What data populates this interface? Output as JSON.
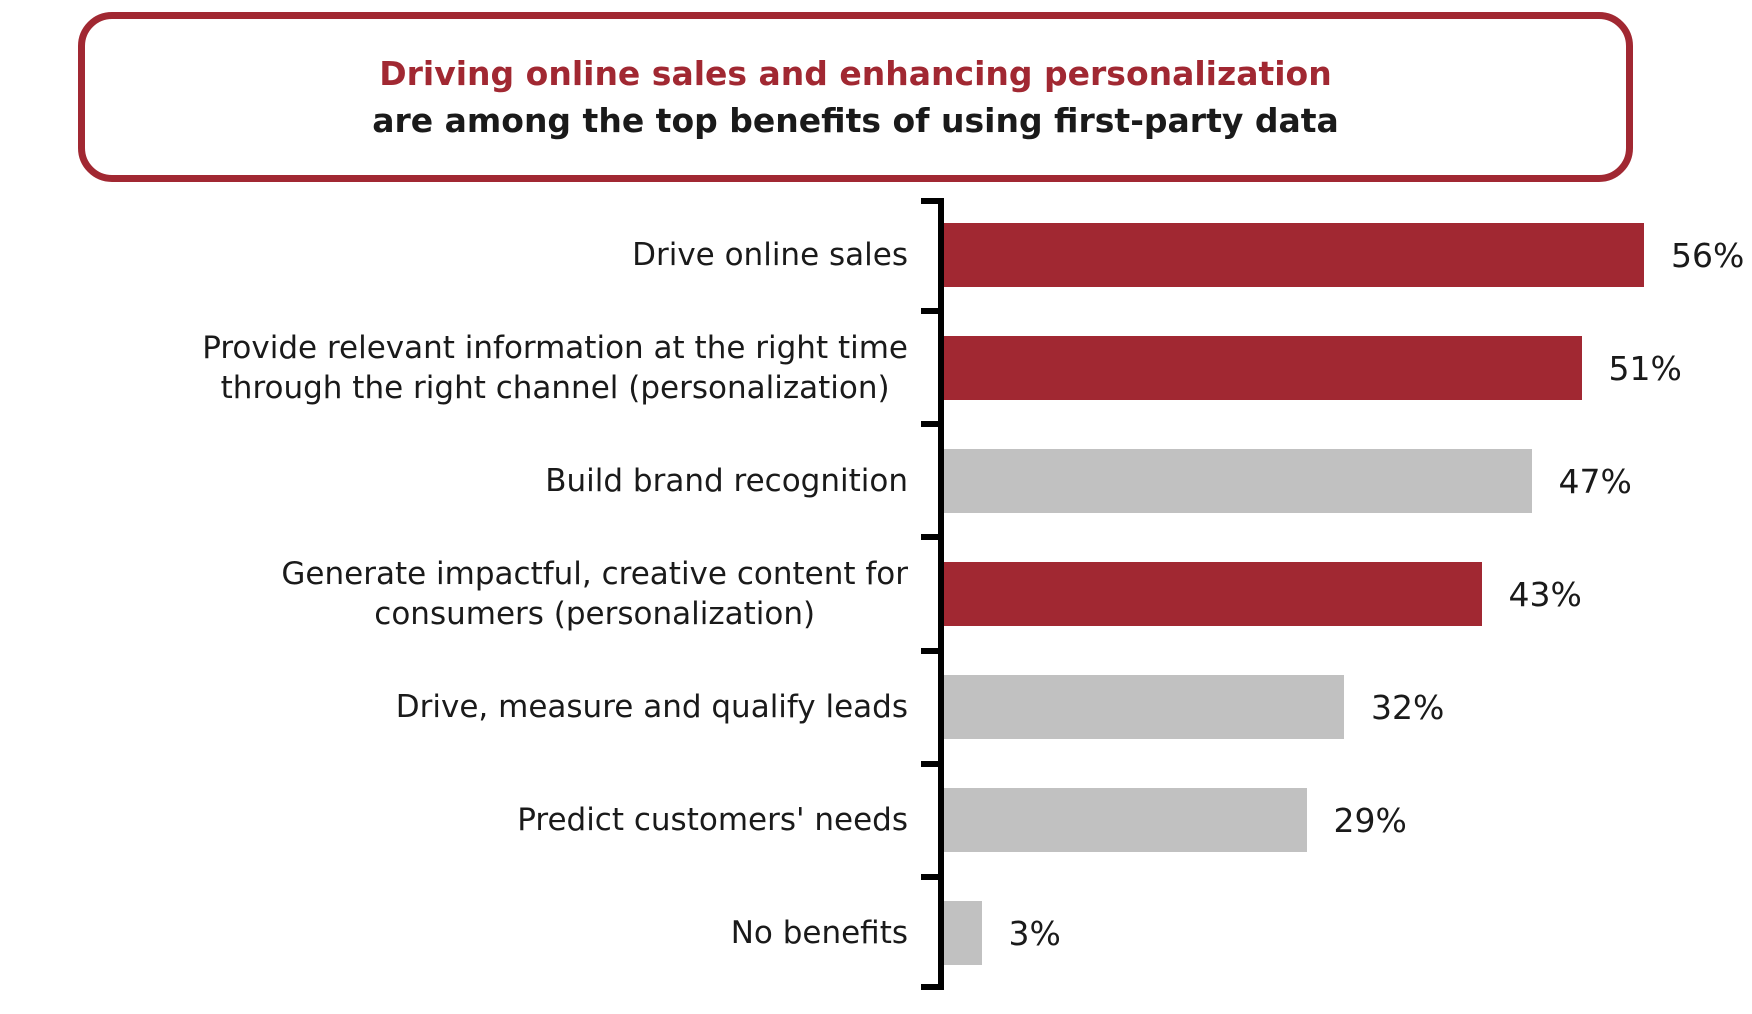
{
  "title_box": {
    "line1": "Driving online sales and enhancing personalization",
    "line2": "are among the top benefits of using first-party data"
  },
  "colors": {
    "accent_red": "#A12832",
    "bar_gray": "#C1C1C1",
    "axis_black": "#000000",
    "page_background": "#FFFFFF",
    "text_black": "#1A1A1A"
  },
  "chart_data": {
    "type": "bar",
    "orientation": "horizontal",
    "title": "Driving online sales and enhancing personalization are among the top benefits of using first-party data",
    "categories": [
      "Drive online sales",
      "Provide relevant information at the right time through the right channel (personalization)",
      "Build brand recognition",
      "Generate impactful, creative content for consumers (personalization)",
      "Drive, measure and qualify leads",
      "Predict customers' needs",
      "No benefits"
    ],
    "category_label_lines": [
      [
        "Drive online sales"
      ],
      [
        "Provide relevant information at the right time",
        "through the right channel (personalization)"
      ],
      [
        "Build brand recognition"
      ],
      [
        "Generate impactful, creative content for",
        "consumers (personalization)"
      ],
      [
        "Drive, measure and qualify leads"
      ],
      [
        "Predict customers' needs"
      ],
      [
        "No benefits"
      ]
    ],
    "values": [
      56,
      51,
      47,
      43,
      32,
      29,
      3
    ],
    "value_labels": [
      "56%",
      "51%",
      "47%",
      "43%",
      "32%",
      "29%",
      "3%"
    ],
    "bar_color_keys": [
      "red",
      "red",
      "gray",
      "red",
      "gray",
      "gray",
      "gray"
    ],
    "unit": "%",
    "xlim": [
      0,
      60
    ],
    "grid": false,
    "legend": false,
    "value_label_position": "outside-end"
  }
}
